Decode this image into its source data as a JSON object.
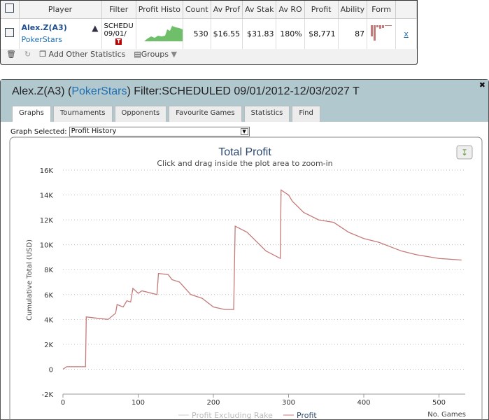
{
  "grid": {
    "headers": [
      "Player",
      "Filter",
      "Profit Histo",
      "Count",
      "Av Prof",
      "Av Stak",
      "Av RO",
      "Profit",
      "Ability",
      "Form"
    ],
    "row": {
      "player": "Alex.Z(A3)",
      "network": "PokerStars",
      "filter_line1": "SCHEDU",
      "filter_line2": "09/01/",
      "filter_badge": "T",
      "count": "530",
      "av_profit": "$16.55",
      "av_stake": "$31.83",
      "av_roi": "180%",
      "profit": "$8,771",
      "ability": "87",
      "remove": "x"
    },
    "footer": {
      "add_stats": "Add Other Statistics",
      "groups": "Groups"
    }
  },
  "panel": {
    "title_prefix": "Alex.Z(A3) (",
    "network": "PokerStars",
    "title_suffix": ") Filter:SCHEDULED 09/01/2012-12/03/2027 T",
    "tabs": [
      "Graphs",
      "Tournaments",
      "Opponents",
      "Favourite Games",
      "Statistics",
      "Find"
    ],
    "active_tab": "Graphs",
    "graph_label": "Graph Selected:",
    "graph_value": "Profit History"
  },
  "chart_data": {
    "type": "line",
    "title": "Total Profit",
    "subtitle": "Click and drag inside the plot area to zoom-in",
    "ylabel": "Cumulative Total (USD)",
    "xlabel": "No. Games",
    "xlim": [
      0,
      535
    ],
    "ylim": [
      -2000,
      16000
    ],
    "xticks": [
      "0",
      "100",
      "200",
      "300",
      "400",
      "500"
    ],
    "yticks": [
      "-2K",
      "0",
      "2K",
      "4K",
      "6K",
      "8K",
      "10K",
      "12K",
      "14K",
      "16K"
    ],
    "grid": "horizontal dotted",
    "legend": "bottom",
    "series": [
      {
        "name": "Profit Excluding Rake",
        "color": "#cccccc",
        "visible": false,
        "x": [],
        "y": []
      },
      {
        "name": "Profit",
        "color": "#c47a78",
        "x": [
          0,
          5,
          30,
          31,
          45,
          60,
          70,
          72,
          80,
          85,
          90,
          93,
          100,
          105,
          125,
          127,
          140,
          145,
          155,
          170,
          185,
          200,
          215,
          227,
          229,
          245,
          270,
          289,
          290,
          300,
          305,
          320,
          340,
          360,
          380,
          400,
          420,
          450,
          470,
          500,
          530
        ],
        "y": [
          0,
          200,
          200,
          4200,
          4100,
          4000,
          4500,
          5200,
          5000,
          5500,
          5400,
          6500,
          6100,
          6300,
          6000,
          7700,
          7600,
          7200,
          7000,
          6000,
          5700,
          5000,
          4800,
          4800,
          11500,
          11000,
          9500,
          8900,
          14400,
          14000,
          13500,
          12600,
          12000,
          11800,
          11000,
          10500,
          10200,
          9500,
          9200,
          8900,
          8771
        ]
      }
    ]
  },
  "colors": {
    "accent": "#1f6fb4",
    "header_bg": "#b2c8cf",
    "spark": "#6fbf6a",
    "form": "#c47a78"
  }
}
